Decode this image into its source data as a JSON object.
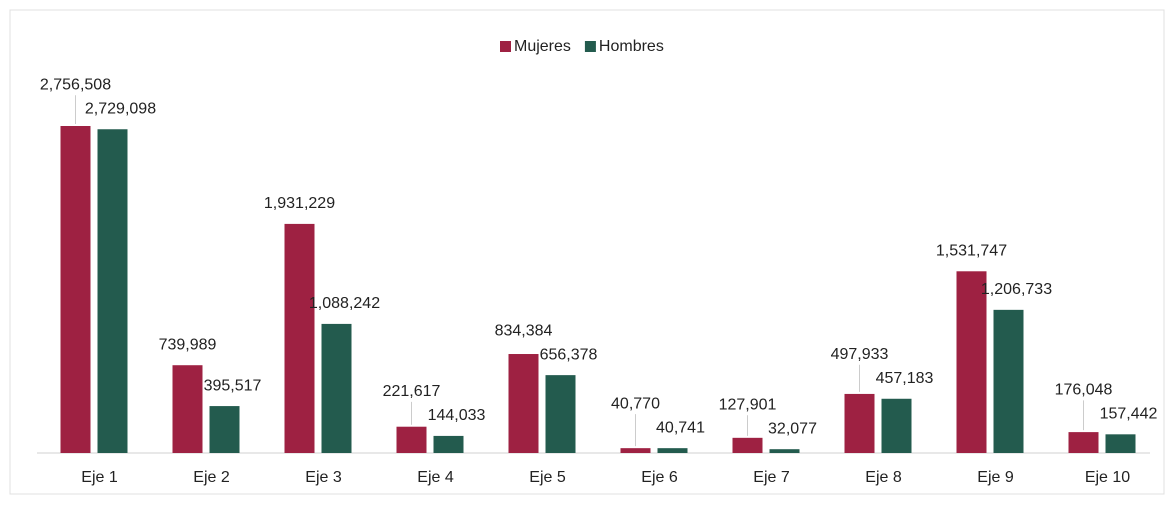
{
  "chart_data": {
    "type": "bar",
    "categories": [
      "Eje 1",
      "Eje 2",
      "Eje 3",
      "Eje 4",
      "Eje 5",
      "Eje 6",
      "Eje 7",
      "Eje 8",
      "Eje 9",
      "Eje 10"
    ],
    "series": [
      {
        "name": "Mujeres",
        "color": "#9e2142",
        "values": [
          2756508,
          739989,
          1931229,
          221617,
          834384,
          40770,
          127901,
          497933,
          1531747,
          176048
        ],
        "value_labels": [
          "2,756,508",
          "739,989",
          "1,931,229",
          "221,617",
          "834,384",
          "40,770",
          "127,901",
          "497,933",
          "1,531,747",
          "176,048"
        ]
      },
      {
        "name": "Hombres",
        "color": "#235b4e",
        "values": [
          2729098,
          395517,
          1088242,
          144033,
          656378,
          40741,
          32077,
          457183,
          1206733,
          157442
        ],
        "value_labels": [
          "2,729,098",
          "395,517",
          "1,088,242",
          "144,033",
          "656,378",
          "40,741",
          "32,077",
          "457,183",
          "1,206,733",
          "157,442"
        ]
      }
    ],
    "legend": "top"
  }
}
